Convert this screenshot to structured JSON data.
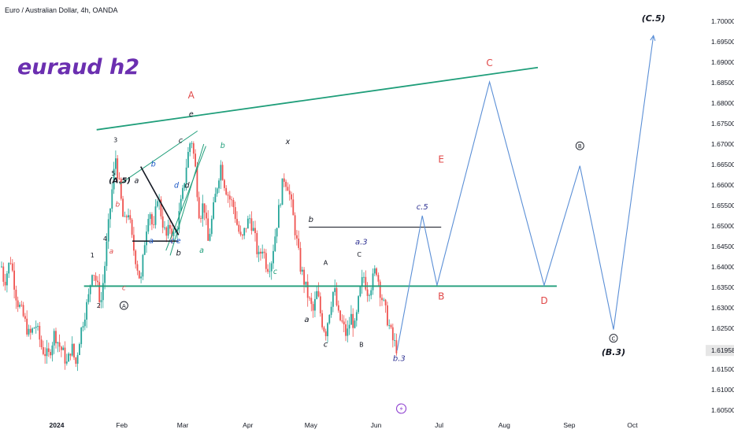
{
  "header": {
    "symbol_label": "Euro / Australian Dollar, 4h, OANDA"
  },
  "annotation_title": "euraud h2",
  "chart_data": {
    "type": "candlestick",
    "title": "Euro / Australian Dollar, 4h, OANDA",
    "ylim": [
      1.603,
      1.704
    ],
    "y_ticks": [
      "1.70000",
      "1.69500",
      "1.69000",
      "1.68500",
      "1.68000",
      "1.67500",
      "1.67000",
      "1.66500",
      "1.66000",
      "1.65500",
      "1.65000",
      "1.64500",
      "1.64000",
      "1.63500",
      "1.63000",
      "1.62500",
      "1.61958",
      "1.61500",
      "1.61000",
      "1.60500"
    ],
    "y_tick_values": [
      1.7,
      1.695,
      1.69,
      1.685,
      1.68,
      1.675,
      1.67,
      1.665,
      1.66,
      1.655,
      1.65,
      1.645,
      1.64,
      1.635,
      1.63,
      1.625,
      1.61958,
      1.615,
      1.61,
      1.605
    ],
    "x_ticks": [
      "2024",
      "Feb",
      "Mar",
      "Apr",
      "May",
      "Jun",
      "Jul",
      "Aug",
      "Sep",
      "Oct"
    ],
    "x_tick_dates": [
      "2024-01-01",
      "2024-02-01",
      "2024-03-01",
      "2024-04-01",
      "2024-05-01",
      "2024-06-01",
      "2024-07-01",
      "2024-08-01",
      "2024-09-01",
      "2024-10-01"
    ],
    "current_price": "1.61958",
    "price_path": [
      [
        "2023-12-01",
        1.64
      ],
      [
        "2023-12-04",
        1.646
      ],
      [
        "2023-12-07",
        1.636
      ],
      [
        "2023-12-10",
        1.642
      ],
      [
        "2023-12-13",
        1.632
      ],
      [
        "2023-12-16",
        1.628
      ],
      [
        "2023-12-19",
        1.623
      ],
      [
        "2023-12-22",
        1.626
      ],
      [
        "2023-12-25",
        1.62
      ],
      [
        "2023-12-28",
        1.618
      ],
      [
        "2023-12-31",
        1.624
      ],
      [
        "2024-01-02",
        1.621
      ],
      [
        "2024-01-04",
        1.619
      ],
      [
        "2024-01-06",
        1.616
      ],
      [
        "2024-01-08",
        1.621
      ],
      [
        "2024-01-10",
        1.616
      ],
      [
        "2024-01-12",
        1.623
      ],
      [
        "2024-01-14",
        1.628
      ],
      [
        "2024-01-16",
        1.632
      ],
      [
        "2024-01-18",
        1.64
      ],
      [
        "2024-01-20",
        1.636
      ],
      [
        "2024-01-22",
        1.631
      ],
      [
        "2024-01-24",
        1.641
      ],
      [
        "2024-01-26",
        1.652
      ],
      [
        "2024-01-28",
        1.662
      ],
      [
        "2024-01-29",
        1.667
      ],
      [
        "2024-01-31",
        1.659
      ],
      [
        "2024-02-02",
        1.65
      ],
      [
        "2024-02-04",
        1.654
      ],
      [
        "2024-02-06",
        1.646
      ],
      [
        "2024-02-08",
        1.641
      ],
      [
        "2024-02-10",
        1.636
      ],
      [
        "2024-02-12",
        1.647
      ],
      [
        "2024-02-14",
        1.655
      ],
      [
        "2024-02-16",
        1.648
      ],
      [
        "2024-02-18",
        1.658
      ],
      [
        "2024-02-20",
        1.652
      ],
      [
        "2024-02-22",
        1.647
      ],
      [
        "2024-02-24",
        1.65
      ],
      [
        "2024-02-26",
        1.647
      ],
      [
        "2024-02-28",
        1.652
      ],
      [
        "2024-03-01",
        1.658
      ],
      [
        "2024-03-03",
        1.666
      ],
      [
        "2024-03-05",
        1.672
      ],
      [
        "2024-03-07",
        1.664
      ],
      [
        "2024-03-09",
        1.652
      ],
      [
        "2024-03-11",
        1.656
      ],
      [
        "2024-03-13",
        1.646
      ],
      [
        "2024-03-15",
        1.652
      ],
      [
        "2024-03-17",
        1.659
      ],
      [
        "2024-03-19",
        1.665
      ],
      [
        "2024-03-21",
        1.66
      ],
      [
        "2024-03-23",
        1.657
      ],
      [
        "2024-03-25",
        1.655
      ],
      [
        "2024-03-27",
        1.65
      ],
      [
        "2024-03-29",
        1.646
      ],
      [
        "2024-03-31",
        1.65
      ],
      [
        "2024-04-02",
        1.652
      ],
      [
        "2024-04-04",
        1.648
      ],
      [
        "2024-04-06",
        1.642
      ],
      [
        "2024-04-08",
        1.645
      ],
      [
        "2024-04-10",
        1.64
      ],
      [
        "2024-04-12",
        1.641
      ],
      [
        "2024-04-14",
        1.648
      ],
      [
        "2024-04-16",
        1.655
      ],
      [
        "2024-04-18",
        1.662
      ],
      [
        "2024-04-20",
        1.66
      ],
      [
        "2024-04-22",
        1.654
      ],
      [
        "2024-04-24",
        1.647
      ],
      [
        "2024-04-26",
        1.64
      ],
      [
        "2024-04-28",
        1.636
      ],
      [
        "2024-04-30",
        1.632
      ],
      [
        "2024-05-02",
        1.629
      ],
      [
        "2024-05-04",
        1.634
      ],
      [
        "2024-05-06",
        1.627
      ],
      [
        "2024-05-08",
        1.624
      ],
      [
        "2024-05-10",
        1.63
      ],
      [
        "2024-05-12",
        1.635
      ],
      [
        "2024-05-14",
        1.628
      ],
      [
        "2024-05-16",
        1.626
      ],
      [
        "2024-05-18",
        1.623
      ],
      [
        "2024-05-20",
        1.628
      ],
      [
        "2024-05-22",
        1.625
      ],
      [
        "2024-05-24",
        1.633
      ],
      [
        "2024-05-26",
        1.638
      ],
      [
        "2024-05-28",
        1.634
      ],
      [
        "2024-05-30",
        1.636
      ],
      [
        "2024-06-01",
        1.64
      ],
      [
        "2024-06-03",
        1.634
      ],
      [
        "2024-06-05",
        1.63
      ],
      [
        "2024-06-07",
        1.626
      ],
      [
        "2024-06-09",
        1.622
      ],
      [
        "2024-06-11",
        1.62
      ]
    ],
    "projection": [
      [
        "2024-06-11",
        1.61958
      ],
      [
        "2024-06-23",
        1.6525
      ],
      [
        "2024-06-30",
        1.6355
      ],
      [
        "2024-07-25",
        1.6852
      ],
      [
        "2024-08-20",
        1.6355
      ],
      [
        "2024-09-06",
        1.6647
      ],
      [
        "2024-09-22",
        1.6247
      ],
      [
        "2024-10-11",
        1.6965
      ]
    ],
    "lines": [
      {
        "name": "upper-channel",
        "from": [
          "2024-01-20",
          1.6735
        ],
        "to": [
          "2024-08-17",
          1.6887
        ],
        "color": "#1f9e7a"
      },
      {
        "name": "horizontal-support",
        "from": [
          "2024-01-14",
          1.6353
        ],
        "to": [
          "2024-08-26",
          1.6353
        ],
        "color": "#1f9e7a"
      },
      {
        "name": "b-level",
        "from": [
          "2024-04-30",
          1.6497
        ],
        "to": [
          "2024-07-02",
          1.6497
        ],
        "color": "#131722"
      }
    ],
    "labels": [
      {
        "text": "A",
        "at": [
          "2024-03-05",
          1.6812
        ],
        "color": "#e04848",
        "size": 12
      },
      {
        "text": "e",
        "at": [
          "2024-03-05",
          1.6767
        ],
        "color": "#131722",
        "size": 9.5
      },
      {
        "text": "c",
        "at": [
          "2024-02-29",
          1.6703
        ],
        "color": "#131722",
        "size": 9.5
      },
      {
        "text": "3",
        "at": [
          "2024-01-29",
          1.6705
        ],
        "color": "#131722",
        "size": 8
      },
      {
        "text": "(A.5)",
        "at": [
          "2024-01-31",
          1.6605
        ],
        "color": "#131722",
        "size": 10
      },
      {
        "text": "a",
        "at": [
          "2024-02-08",
          1.6605
        ],
        "color": "#131722",
        "size": 9.5
      },
      {
        "text": "5",
        "at": [
          "2024-01-28",
          1.6623
        ],
        "color": "#131722",
        "size": 8
      },
      {
        "text": "b",
        "at": [
          "2024-01-30",
          1.6547
        ],
        "color": "#e04848",
        "size": 9
      },
      {
        "text": "4",
        "at": [
          "2024-01-24",
          1.6463
        ],
        "color": "#131722",
        "size": 8
      },
      {
        "text": "a",
        "at": [
          "2024-01-27",
          1.6433
        ],
        "color": "#e04848",
        "size": 9
      },
      {
        "text": "c",
        "at": [
          "2024-02-02",
          1.6343
        ],
        "color": "#e04848",
        "size": 9
      },
      {
        "text": "A",
        "at": [
          "2024-02-02",
          1.63
        ],
        "color": "#131722",
        "size": 8,
        "circled": true
      },
      {
        "text": "1",
        "at": [
          "2024-01-18",
          1.6423
        ],
        "color": "#131722",
        "size": 8
      },
      {
        "text": "2",
        "at": [
          "2024-01-21",
          1.63
        ],
        "color": "#131722",
        "size": 8
      },
      {
        "text": "b",
        "at": [
          "2024-02-16",
          1.6645
        ],
        "color": "#1a56c4",
        "size": 9.5
      },
      {
        "text": "a",
        "at": [
          "2024-02-15",
          1.6458
        ],
        "color": "#1a56c4",
        "size": 9.5
      },
      {
        "text": "c",
        "at": [
          "2024-02-25",
          1.6458
        ],
        "color": "#1a56c4",
        "size": 9.5
      },
      {
        "text": "d",
        "at": [
          "2024-02-27",
          1.6593
        ],
        "color": "#1a56c4",
        "size": 9.5
      },
      {
        "text": "e",
        "at": [
          "2024-02-28",
          1.6458
        ],
        "color": "#1a56c4",
        "size": 9.5
      },
      {
        "text": "b",
        "at": [
          "2024-02-28",
          1.6428
        ],
        "color": "#131722",
        "size": 10
      },
      {
        "text": "d",
        "at": [
          "2024-03-03",
          1.6593
        ],
        "color": "#131722",
        "size": 10
      },
      {
        "text": "b",
        "at": [
          "2024-03-20",
          1.669
        ],
        "color": "#1f9e7a",
        "size": 9.5
      },
      {
        "text": "a",
        "at": [
          "2024-03-10",
          1.6435
        ],
        "color": "#1f9e7a",
        "size": 9.5
      },
      {
        "text": "c",
        "at": [
          "2024-04-14",
          1.6383
        ],
        "color": "#1f9e7a",
        "size": 9.5
      },
      {
        "text": "x",
        "at": [
          "2024-04-20",
          1.67
        ],
        "color": "#131722",
        "size": 9.5
      },
      {
        "text": "b",
        "at": [
          "2024-05-01",
          1.651
        ],
        "color": "#131722",
        "size": 10
      },
      {
        "text": "a",
        "at": [
          "2024-04-29",
          1.6265
        ],
        "color": "#131722",
        "size": 10
      },
      {
        "text": "c",
        "at": [
          "2024-05-08",
          1.6205
        ],
        "color": "#131722",
        "size": 10
      },
      {
        "text": "A",
        "at": [
          "2024-05-08",
          1.6405
        ],
        "color": "#131722",
        "size": 8
      },
      {
        "text": "C",
        "at": [
          "2024-05-24",
          1.6425
        ],
        "color": "#131722",
        "size": 8
      },
      {
        "text": "B",
        "at": [
          "2024-05-25",
          1.6205
        ],
        "color": "#131722",
        "size": 8
      },
      {
        "text": "a.3",
        "at": [
          "2024-05-25",
          1.6455
        ],
        "color": "#2e3192",
        "size": 10
      },
      {
        "text": "b.3",
        "at": [
          "2024-06-12",
          1.617
        ],
        "color": "#2e3192",
        "size": 10
      },
      {
        "text": "c.5",
        "at": [
          "2024-06-23",
          1.654
        ],
        "color": "#2e3192",
        "size": 10
      },
      {
        "text": "E",
        "at": [
          "2024-07-02",
          1.6655
        ],
        "color": "#e04848",
        "size": 12
      },
      {
        "text": "B",
        "at": [
          "2024-07-02",
          1.632
        ],
        "color": "#e04848",
        "size": 12
      },
      {
        "text": "C",
        "at": [
          "2024-07-25",
          1.689
        ],
        "color": "#e04848",
        "size": 12
      },
      {
        "text": "D",
        "at": [
          "2024-08-20",
          1.631
        ],
        "color": "#e04848",
        "size": 12
      },
      {
        "text": "B",
        "at": [
          "2024-09-06",
          1.669
        ],
        "color": "#131722",
        "size": 8,
        "circled": true
      },
      {
        "text": "C",
        "at": [
          "2024-09-22",
          1.622
        ],
        "color": "#131722",
        "size": 8,
        "circled": true
      },
      {
        "text": "(B.3)",
        "at": [
          "2024-09-22",
          1.6185
        ],
        "color": "#131722",
        "size": 11
      },
      {
        "text": "(C.5)",
        "at": [
          "2024-10-11",
          1.7
        ],
        "color": "#131722",
        "size": 11
      }
    ]
  }
}
